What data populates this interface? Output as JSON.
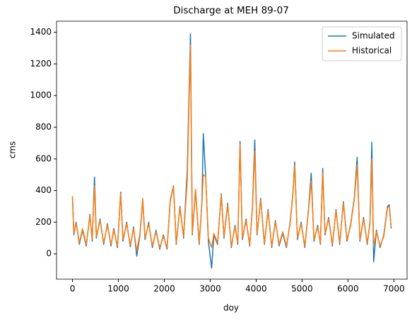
{
  "chart_data": {
    "type": "line",
    "title": "Discharge at MEH 89-07",
    "xlabel": "doy",
    "ylabel": "cms",
    "x": [
      0,
      30,
      80,
      150,
      220,
      300,
      380,
      430,
      480,
      520,
      600,
      680,
      760,
      840,
      900,
      980,
      1050,
      1100,
      1180,
      1260,
      1330,
      1400,
      1470,
      1530,
      1580,
      1660,
      1740,
      1820,
      1900,
      1980,
      2060,
      2130,
      2200,
      2260,
      2340,
      2420,
      2500,
      2570,
      2610,
      2680,
      2760,
      2820,
      2850,
      2900,
      2960,
      3030,
      3080,
      3160,
      3240,
      3300,
      3380,
      3460,
      3540,
      3600,
      3650,
      3700,
      3780,
      3860,
      3920,
      3970,
      4020,
      4100,
      4180,
      4260,
      4340,
      4420,
      4500,
      4580,
      4660,
      4740,
      4800,
      4840,
      4900,
      4980,
      5060,
      5140,
      5200,
      5260,
      5340,
      5400,
      5450,
      5500,
      5580,
      5660,
      5740,
      5820,
      5900,
      5980,
      6060,
      6140,
      6200,
      6260,
      6340,
      6420,
      6480,
      6520,
      6560,
      6620,
      6700,
      6780,
      6860,
      6900,
      6940
    ],
    "series": [
      {
        "name": "Simulated",
        "color": "#1f77b4",
        "values": [
          360,
          120,
          200,
          60,
          150,
          50,
          250,
          80,
          485,
          100,
          220,
          60,
          190,
          50,
          160,
          40,
          390,
          80,
          200,
          45,
          170,
          -15,
          120,
          340,
          90,
          200,
          40,
          150,
          30,
          120,
          30,
          340,
          430,
          60,
          300,
          100,
          530,
          1390,
          120,
          400,
          60,
          330,
          760,
          495,
          80,
          -90,
          120,
          60,
          380,
          100,
          320,
          40,
          180,
          60,
          710,
          90,
          220,
          50,
          300,
          720,
          120,
          350,
          60,
          280,
          40,
          210,
          50,
          130,
          40,
          200,
          380,
          580,
          90,
          200,
          40,
          280,
          510,
          80,
          180,
          60,
          540,
          120,
          230,
          50,
          280,
          60,
          330,
          80,
          190,
          360,
          610,
          80,
          230,
          60,
          200,
          705,
          -50,
          150,
          40,
          120,
          300,
          310,
          160
        ]
      },
      {
        "name": "Historical",
        "color": "#ff7f0e",
        "values": [
          365,
          130,
          190,
          70,
          160,
          60,
          240,
          90,
          430,
          110,
          210,
          70,
          180,
          60,
          150,
          50,
          380,
          90,
          190,
          55,
          160,
          20,
          130,
          350,
          100,
          190,
          50,
          140,
          40,
          110,
          40,
          330,
          425,
          70,
          290,
          110,
          460,
          1320,
          130,
          410,
          70,
          320,
          500,
          490,
          100,
          40,
          130,
          70,
          370,
          110,
          310,
          50,
          170,
          70,
          690,
          100,
          210,
          60,
          290,
          650,
          130,
          340,
          70,
          270,
          50,
          200,
          60,
          140,
          50,
          190,
          370,
          560,
          100,
          190,
          50,
          270,
          460,
          90,
          170,
          70,
          510,
          130,
          220,
          60,
          270,
          70,
          320,
          90,
          180,
          350,
          560,
          90,
          220,
          70,
          190,
          600,
          50,
          140,
          50,
          110,
          290,
          300,
          170
        ]
      }
    ],
    "xlim": [
      -347,
      7287
    ],
    "xticks": [
      0,
      1000,
      2000,
      3000,
      4000,
      5000,
      6000,
      7000
    ],
    "ylim": [
      -160,
      1470
    ],
    "yticks": [
      0,
      200,
      400,
      600,
      800,
      1000,
      1200,
      1400
    ],
    "grid": false,
    "legend": "upper right"
  }
}
